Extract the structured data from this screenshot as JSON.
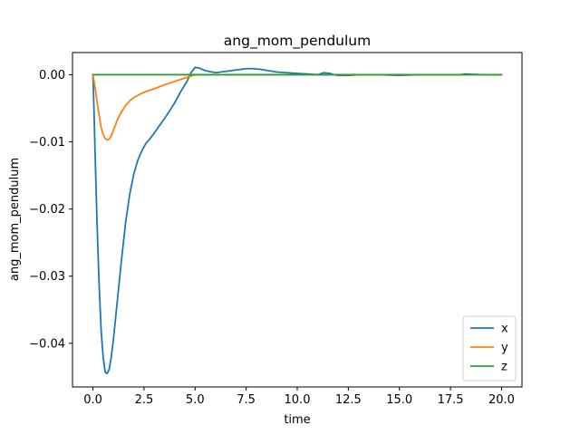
{
  "chart_data": {
    "type": "line",
    "title": "ang_mom_pendulum",
    "xlabel": "time",
    "ylabel": "ang_mom_pendulum",
    "xlim": [
      -1.0,
      21.0
    ],
    "ylim": [
      -0.0465,
      0.0033
    ],
    "xticks": [
      0.0,
      2.5,
      5.0,
      7.5,
      10.0,
      12.5,
      15.0,
      17.5,
      20.0
    ],
    "xtick_labels": [
      "0.0",
      "2.5",
      "5.0",
      "7.5",
      "10.0",
      "12.5",
      "15.0",
      "17.5",
      "20.0"
    ],
    "yticks": [
      0.0,
      -0.01,
      -0.02,
      -0.03,
      -0.04
    ],
    "ytick_labels": [
      "0.00",
      "−0.01",
      "−0.02",
      "−0.03",
      "−0.04"
    ],
    "grid": false,
    "legend_position": "lower-right",
    "series": [
      {
        "name": "x",
        "color": "#1f77b4",
        "x": [
          0.0,
          0.05,
          0.1,
          0.2,
          0.3,
          0.4,
          0.5,
          0.6,
          0.7,
          0.8,
          0.9,
          1.0,
          1.2,
          1.4,
          1.6,
          1.8,
          2.0,
          2.2,
          2.4,
          2.6,
          2.8,
          3.0,
          3.3,
          3.6,
          4.0,
          4.3,
          4.6,
          4.8,
          5.0,
          5.2,
          5.5,
          6.0,
          6.5,
          7.0,
          7.5,
          7.8,
          8.2,
          8.6,
          9.0,
          9.5,
          10.0,
          10.5,
          11.0,
          11.3,
          11.6,
          11.8,
          12.0,
          12.5,
          13.0,
          14.0,
          15.0,
          16.0,
          17.0,
          18.0,
          18.2,
          19.0,
          20.0
        ],
        "y": [
          0.0,
          -0.005,
          -0.011,
          -0.022,
          -0.031,
          -0.038,
          -0.042,
          -0.0443,
          -0.0445,
          -0.0438,
          -0.042,
          -0.0395,
          -0.0335,
          -0.0275,
          -0.022,
          -0.0178,
          -0.0148,
          -0.0127,
          -0.0113,
          -0.0102,
          -0.0095,
          -0.0087,
          -0.0074,
          -0.0061,
          -0.0042,
          -0.0025,
          -0.001,
          0.0003,
          0.0011,
          0.001,
          0.0006,
          0.0003,
          0.0005,
          0.0007,
          0.0009,
          0.0009,
          0.0008,
          0.0006,
          0.0004,
          0.0003,
          0.0002,
          0.0001,
          0.0,
          0.0003,
          0.0002,
          0.0,
          -0.0001,
          -0.0001,
          0.0,
          0.0,
          -0.0001,
          0.0,
          0.0,
          0.0,
          0.0001,
          0.0,
          0.0
        ]
      },
      {
        "name": "y",
        "color": "#ff7f0e",
        "x": [
          0.0,
          0.1,
          0.2,
          0.3,
          0.4,
          0.5,
          0.6,
          0.7,
          0.8,
          0.9,
          1.0,
          1.1,
          1.2,
          1.4,
          1.6,
          1.8,
          2.0,
          2.3,
          2.6,
          3.0,
          3.5,
          4.0,
          4.5,
          4.8,
          5.0,
          5.5,
          6.0,
          7.0,
          8.0,
          10.0,
          12.0,
          14.0,
          16.0,
          18.0,
          20.0
        ],
        "y": [
          0.0,
          -0.0018,
          -0.004,
          -0.006,
          -0.0078,
          -0.0089,
          -0.0095,
          -0.0097,
          -0.0096,
          -0.0091,
          -0.0083,
          -0.0075,
          -0.0067,
          -0.0055,
          -0.0046,
          -0.0039,
          -0.0034,
          -0.0029,
          -0.0025,
          -0.0021,
          -0.0015,
          -0.001,
          -0.0005,
          -0.0002,
          0.0,
          0.0,
          0.0,
          0.0,
          0.0,
          0.0,
          0.0,
          0.0,
          0.0,
          0.0,
          0.0
        ]
      },
      {
        "name": "z",
        "color": "#2ca02c",
        "x": [
          0.0,
          5.0,
          10.0,
          15.0,
          20.0
        ],
        "y": [
          0.0,
          0.0,
          0.0,
          0.0,
          0.0
        ]
      }
    ]
  }
}
